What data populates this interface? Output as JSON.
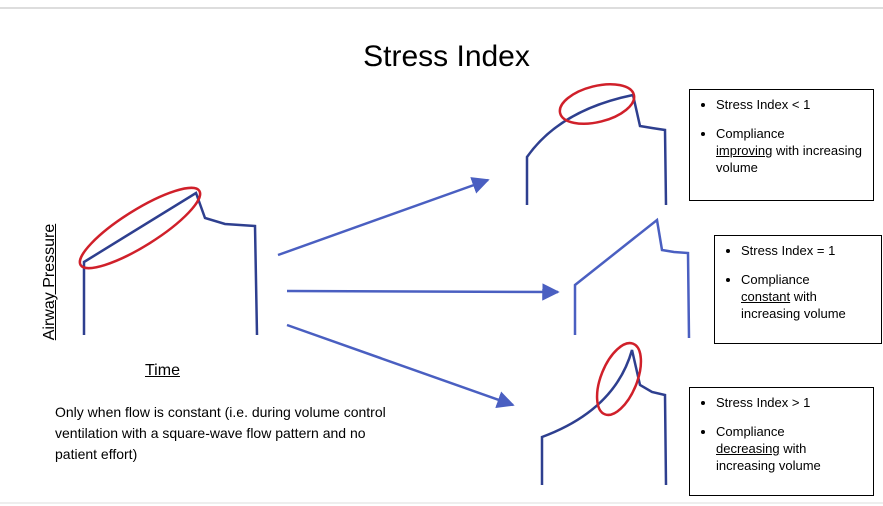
{
  "title": "Stress Index",
  "axis_labels": {
    "y": "Airway Pressure",
    "x": "Time"
  },
  "note": "Only when flow is constant (i.e. during volume control ventilation with a square-wave flow pattern and no patient effort)",
  "boxes": [
    {
      "bullet": "Stress Index < 1",
      "lead": "Compliance",
      "emphasis": "improving",
      "tail": "with increasing volume"
    },
    {
      "bullet": "Stress Index = 1",
      "lead": "Compliance",
      "emphasis": "constant",
      "tail": "with increasing volume"
    },
    {
      "bullet": "Stress Index > 1",
      "lead": "Compliance",
      "emphasis": "decreasing",
      "tail": "with increasing volume"
    }
  ]
}
